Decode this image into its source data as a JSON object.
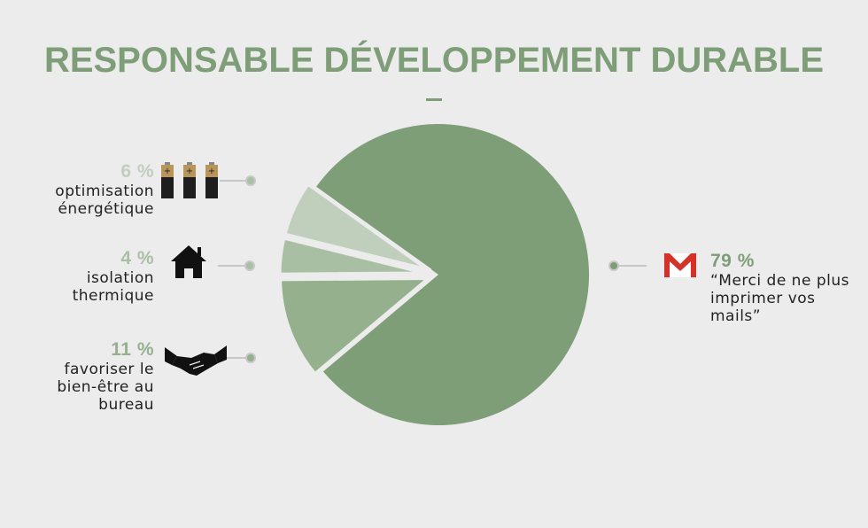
{
  "title": "RESPONSABLE DÉVELOPPEMENT DURABLE",
  "chart_data": {
    "type": "pie",
    "title": "RESPONSABLE DÉVELOPPEMENT DURABLE",
    "slices": [
      {
        "label": "“Merci de ne plus imprimer vos mails”",
        "value": 79,
        "display": "79 %",
        "color": "#7d9e76",
        "icon": "gmail-icon"
      },
      {
        "label": "optimisation énergétique",
        "value": 6,
        "display": "6 %",
        "color": "#c0cfbc",
        "icon": "batteries-icon",
        "exploded": true
      },
      {
        "label": "isolation thermique",
        "value": 4,
        "display": "4 %",
        "color": "#a9bfa4",
        "icon": "house-icon",
        "exploded": true
      },
      {
        "label": "favoriser le bien-être au bureau",
        "value": 11,
        "display": "11 %",
        "color": "#94b08c",
        "icon": "handshake-icon",
        "exploded": true
      }
    ]
  }
}
